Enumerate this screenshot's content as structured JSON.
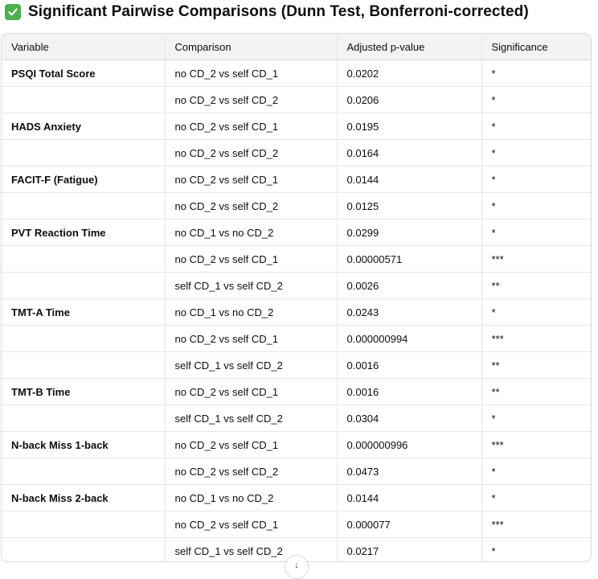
{
  "heading": {
    "icon": "check-mark-button-icon",
    "text": "Significant Pairwise Comparisons (Dunn Test, Bonferroni-corrected)"
  },
  "table": {
    "headers": [
      "Variable",
      "Comparison",
      "Adjusted p-value",
      "Significance"
    ],
    "rows": [
      {
        "variable": "PSQI Total Score",
        "comparison": "no CD_2 vs self CD_1",
        "p": "0.0202",
        "sig": "*"
      },
      {
        "variable": "",
        "comparison": "no CD_2 vs self CD_2",
        "p": "0.0206",
        "sig": "*"
      },
      {
        "variable": "HADS Anxiety",
        "comparison": "no CD_2 vs self CD_1",
        "p": "0.0195",
        "sig": "*"
      },
      {
        "variable": "",
        "comparison": "no CD_2 vs self CD_2",
        "p": "0.0164",
        "sig": "*"
      },
      {
        "variable": "FACIT-F (Fatigue)",
        "comparison": "no CD_2 vs self CD_1",
        "p": "0.0144",
        "sig": "*"
      },
      {
        "variable": "",
        "comparison": "no CD_2 vs self CD_2",
        "p": "0.0125",
        "sig": "*"
      },
      {
        "variable": "PVT Reaction Time",
        "comparison": "no CD_1 vs no CD_2",
        "p": "0.0299",
        "sig": "*"
      },
      {
        "variable": "",
        "comparison": "no CD_2 vs self CD_1",
        "p": "0.00000571",
        "sig": "***"
      },
      {
        "variable": "",
        "comparison": "self CD_1 vs self CD_2",
        "p": "0.0026",
        "sig": "**"
      },
      {
        "variable": "TMT-A Time",
        "comparison": "no CD_1 vs no CD_2",
        "p": "0.0243",
        "sig": "*"
      },
      {
        "variable": "",
        "comparison": "no CD_2 vs self CD_1",
        "p": "0.000000994",
        "sig": "***"
      },
      {
        "variable": "",
        "comparison": "self CD_1 vs self CD_2",
        "p": "0.0016",
        "sig": "**"
      },
      {
        "variable": "TMT-B Time",
        "comparison": "no CD_2 vs self CD_1",
        "p": "0.0016",
        "sig": "**"
      },
      {
        "variable": "",
        "comparison": "self CD_1 vs self CD_2",
        "p": "0.0304",
        "sig": "*"
      },
      {
        "variable": "N-back Miss 1-back",
        "comparison": "no CD_2 vs self CD_1",
        "p": "0.000000996",
        "sig": "***"
      },
      {
        "variable": "",
        "comparison": "no CD_2 vs self CD_2",
        "p": "0.0473",
        "sig": "*"
      },
      {
        "variable": "N-back Miss 2-back",
        "comparison": "no CD_1 vs no CD_2",
        "p": "0.0144",
        "sig": "*"
      },
      {
        "variable": "",
        "comparison": "no CD_2 vs self CD_1",
        "p": "0.000077",
        "sig": "***"
      },
      {
        "variable": "",
        "comparison": "self CD_1 vs self CD_2",
        "p": "0.0217",
        "sig": "*"
      }
    ]
  },
  "scroll_button": {
    "icon": "arrow-down-icon",
    "glyph": "↓"
  }
}
